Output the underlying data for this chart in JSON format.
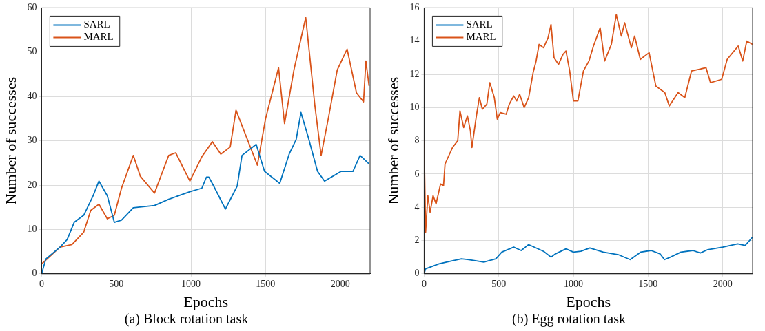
{
  "chart_data": [
    {
      "type": "line",
      "title": "(a) Block rotation task",
      "xlabel": "Epochs",
      "ylabel": "Number of successes",
      "xlim": [
        0,
        2200
      ],
      "xticks": [
        0,
        500,
        1000,
        1500,
        2000
      ],
      "ylim": [
        0,
        60
      ],
      "yticks": [
        0,
        10,
        20,
        30,
        40,
        50,
        60
      ],
      "grid": true,
      "legend": "top left",
      "marker": "none",
      "line_style": "solid",
      "series": [
        {
          "name": "SARL",
          "color": "#0072bd",
          "x": [
            0,
            28,
            123,
            171,
            218,
            282,
            345,
            384,
            440,
            487,
            535,
            614,
            756,
            851,
            993,
            1073,
            1104,
            1120,
            1152,
            1231,
            1310,
            1342,
            1437,
            1493,
            1595,
            1658,
            1705,
            1737,
            1785,
            1848,
            1895,
            2006,
            2085,
            2133,
            2193
          ],
          "values": [
            0,
            3.3,
            6,
            7.7,
            11.6,
            13.2,
            17.6,
            20.9,
            17.6,
            11.6,
            12.1,
            14.9,
            15.4,
            16.8,
            18.5,
            19.3,
            21.8,
            21.8,
            19.8,
            14.6,
            19.8,
            26.7,
            29.2,
            23.1,
            20.4,
            27,
            30.3,
            36.4,
            30.9,
            23.1,
            20.9,
            23.1,
            23.1,
            26.7,
            24.8
          ]
        },
        {
          "name": "MARL",
          "color": "#d95319",
          "x": [
            0,
            123,
            203,
            282,
            329,
            384,
            440,
            487,
            535,
            614,
            661,
            756,
            851,
            898,
            993,
            1073,
            1144,
            1200,
            1263,
            1302,
            1370,
            1445,
            1500,
            1587,
            1627,
            1690,
            1769,
            1830,
            1872,
            1920,
            1980,
            2046,
            2109,
            2156,
            2172,
            2193
          ],
          "values": [
            2.2,
            6,
            6.6,
            9.4,
            14.3,
            15.7,
            12.4,
            13.2,
            19.3,
            26.7,
            22,
            18.2,
            26.7,
            27.3,
            20.9,
            26.4,
            29.8,
            27,
            28.6,
            36.9,
            31,
            24.5,
            35,
            46.5,
            33.9,
            46,
            57.8,
            38,
            26.7,
            35,
            46,
            50.7,
            40.8,
            38.8,
            48,
            42.4
          ]
        }
      ]
    },
    {
      "type": "line",
      "title": "(b) Egg rotation task",
      "xlabel": "Epochs",
      "ylabel": "Number of successes",
      "xlim": [
        0,
        2200
      ],
      "xticks": [
        0,
        500,
        1000,
        1500,
        2000
      ],
      "ylim": [
        0,
        16
      ],
      "yticks": [
        0,
        2,
        4,
        6,
        8,
        10,
        12,
        14,
        16
      ],
      "grid": true,
      "legend": "top left",
      "marker": "none",
      "line_style": "solid",
      "series": [
        {
          "name": "SARL",
          "color": "#0072bd",
          "x": [
            0,
            10,
            100,
            150,
            250,
            300,
            400,
            480,
            520,
            600,
            650,
            700,
            800,
            850,
            880,
            950,
            1000,
            1050,
            1110,
            1200,
            1300,
            1380,
            1450,
            1520,
            1580,
            1610,
            1650,
            1720,
            1800,
            1850,
            1900,
            2000,
            2100,
            2150,
            2200
          ],
          "values": [
            0,
            0.3,
            0.6,
            0.7,
            0.9,
            0.85,
            0.7,
            0.9,
            1.3,
            1.6,
            1.4,
            1.75,
            1.35,
            1,
            1.2,
            1.5,
            1.3,
            1.35,
            1.55,
            1.3,
            1.15,
            0.85,
            1.3,
            1.4,
            1.2,
            0.85,
            1,
            1.3,
            1.4,
            1.25,
            1.45,
            1.6,
            1.8,
            1.7,
            2.2
          ]
        },
        {
          "name": "MARL",
          "color": "#d95319",
          "x": [
            0,
            10,
            25,
            40,
            60,
            80,
            110,
            130,
            140,
            160,
            190,
            225,
            240,
            265,
            290,
            310,
            320,
            350,
            370,
            390,
            420,
            440,
            470,
            490,
            510,
            550,
            570,
            600,
            620,
            640,
            670,
            700,
            730,
            750,
            770,
            800,
            830,
            850,
            870,
            900,
            930,
            950,
            975,
            1000,
            1030,
            1067,
            1104,
            1134,
            1179,
            1209,
            1254,
            1287,
            1321,
            1343,
            1388,
            1410,
            1448,
            1507,
            1552,
            1612,
            1642,
            1701,
            1746,
            1791,
            1888,
            1918,
            1993,
            2030,
            2104,
            2134,
            2161,
            2200
          ],
          "values": [
            8,
            2.5,
            4.7,
            3.7,
            4.7,
            4.2,
            5.4,
            5.3,
            6.6,
            7,
            7.6,
            8,
            9.8,
            8.8,
            9.5,
            8.6,
            7.6,
            9.5,
            10.6,
            9.9,
            10.2,
            11.5,
            10.6,
            9.3,
            9.7,
            9.6,
            10.2,
            10.7,
            10.4,
            10.8,
            10,
            10.6,
            12.1,
            12.8,
            13.8,
            13.6,
            14.2,
            15,
            13,
            12.6,
            13.2,
            13.4,
            12.2,
            10.4,
            10.4,
            12.2,
            12.8,
            13.7,
            14.8,
            12.8,
            13.8,
            15.6,
            14.3,
            15.1,
            13.6,
            14.3,
            12.9,
            13.3,
            11.3,
            10.9,
            10.1,
            10.9,
            10.6,
            12.2,
            12.4,
            11.5,
            11.7,
            12.9,
            13.7,
            12.8,
            14,
            13.8
          ]
        }
      ]
    }
  ]
}
